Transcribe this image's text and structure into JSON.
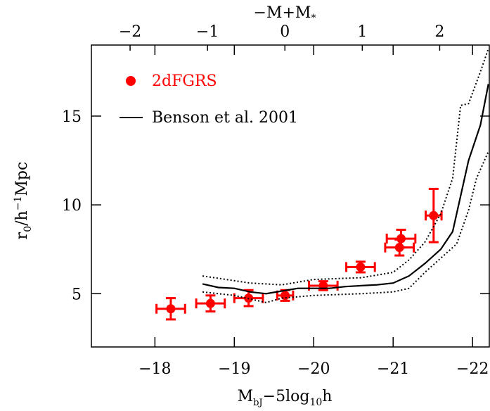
{
  "chart_data": {
    "type": "errorbar",
    "x_label_parts": [
      "M",
      "bJ",
      "−5log",
      "10",
      "h"
    ],
    "y_label_parts": [
      "r",
      "0",
      "/h",
      "−1",
      "Mpc"
    ],
    "x2_label_parts": [
      "−M+M",
      "*"
    ],
    "xlim": [
      -17.2,
      -22.22
    ],
    "xticks": [
      {
        "value": -18,
        "label": "−18"
      },
      {
        "value": -19,
        "label": "−19"
      },
      {
        "value": -20,
        "label": "−20"
      },
      {
        "value": -21,
        "label": "−21"
      },
      {
        "value": -22,
        "label": "−22"
      }
    ],
    "x2lim": [
      -2.5,
      2.65
    ],
    "x2ticks": [
      {
        "value": -2,
        "label": "−2"
      },
      {
        "value": -1,
        "label": "−1"
      },
      0,
      1,
      2
    ],
    "ylim": [
      2,
      19
    ],
    "yticks": [
      5,
      10,
      15
    ],
    "series": [
      {
        "name": "2dFGRS",
        "color": "#ff0000",
        "kind": "points",
        "x": [
          -18.2,
          -18.7,
          -19.18,
          -19.64,
          -20.12,
          -20.59,
          -21.08,
          -21.1,
          -21.51
        ],
        "values": [
          4.15,
          4.45,
          4.75,
          4.9,
          5.45,
          6.5,
          7.6,
          8.1,
          9.4
        ],
        "yerr": [
          0.6,
          0.45,
          0.45,
          0.3,
          0.25,
          0.3,
          0.45,
          0.5,
          1.5
        ],
        "xerr": [
          0.18,
          0.18,
          0.18,
          0.1,
          0.18,
          0.18,
          0.18,
          0.18,
          0.1
        ]
      },
      {
        "name": "Benson et al. 2001",
        "color": "#000000",
        "kind": "solid",
        "x": [
          -18.6,
          -18.8,
          -19.0,
          -19.2,
          -19.4,
          -19.6,
          -19.8,
          -20.0,
          -20.2,
          -20.4,
          -20.6,
          -20.8,
          -21.0,
          -21.2,
          -21.4,
          -21.6,
          -21.75,
          -21.85,
          -21.95,
          -22.1,
          -22.2
        ],
        "values": [
          5.55,
          5.35,
          5.3,
          5.1,
          5.0,
          5.15,
          5.3,
          5.3,
          5.3,
          5.4,
          5.45,
          5.5,
          5.6,
          6.0,
          6.7,
          7.5,
          8.5,
          10.5,
          12.5,
          14.5,
          16.8
        ]
      },
      {
        "color": "#000000",
        "kind": "dotted",
        "x": [
          -18.6,
          -19.2,
          -19.6,
          -20.0,
          -20.6,
          -21.0,
          -21.2,
          -21.4,
          -21.6,
          -21.75,
          -21.85,
          -21.95,
          -22.1,
          -22.2
        ],
        "values": [
          6.0,
          5.6,
          5.5,
          5.8,
          5.9,
          6.2,
          6.9,
          7.9,
          9.5,
          11.5,
          15.6,
          15.7,
          17.5,
          18.8
        ]
      },
      {
        "color": "#000000",
        "kind": "dotted",
        "x": [
          -18.6,
          -19.0,
          -19.4,
          -19.6,
          -20.0,
          -20.6,
          -21.0,
          -21.2,
          -21.4,
          -21.6,
          -21.8,
          -21.95,
          -22.05,
          -22.2
        ],
        "values": [
          5.1,
          4.9,
          4.5,
          4.75,
          4.9,
          5.0,
          5.1,
          5.3,
          6.2,
          7.0,
          7.8,
          9.7,
          11.5,
          13.0
        ]
      }
    ]
  }
}
